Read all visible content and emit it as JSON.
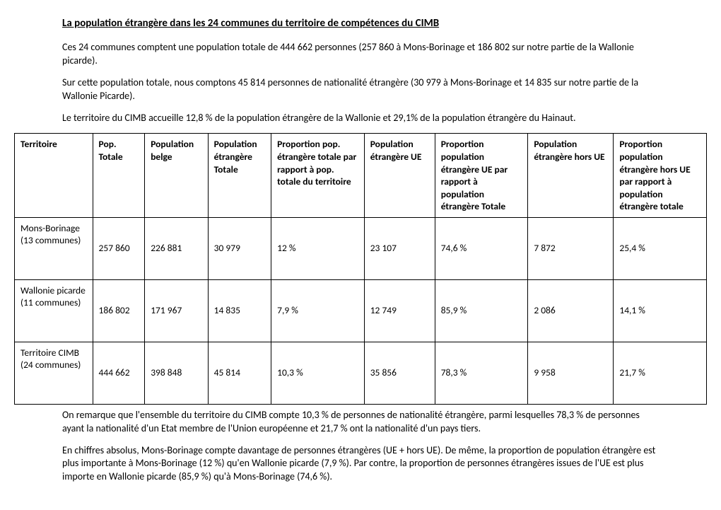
{
  "title": "La population étrangère dans les 24 communes du territoire de compétences du CIMB",
  "intro": {
    "p1": "Ces 24 communes comptent une population totale de 444 662 personnes (257 860 à Mons-Borinage et 186 802 sur notre partie de la Wallonie picarde).",
    "p2": "Sur cette population totale, nous comptons 45 814 personnes de nationalité étrangère (30 979 à Mons-Borinage et 14 835 sur notre partie de la Wallonie Picarde).",
    "p3": "Le territoire du CIMB accueille 12,8 % de la population étrangère de la Wallonie et 29,1% de la population étrangère du Hainaut."
  },
  "table": {
    "headers": [
      "Territoire",
      "Pop. Totale",
      "Population belge",
      "Population\nétrangère\nTotale",
      "Proportion pop. étrangère totale par rapport à pop. totale du territoire",
      "Population\nétrangère UE",
      "Proportion population étrangère UE par rapport à population étrangère Totale",
      "Population étrangère hors UE",
      "Proportion population étrangère hors UE par rapport à population étrangère totale"
    ],
    "rows": [
      {
        "territoire": "Mons-Borinage (13 communes)",
        "pop_totale": "257 860",
        "pop_belge": "226 881",
        "pop_etr_totale": "30 979",
        "prop_etr_totale": "12 %",
        "pop_etr_ue": "23 107",
        "prop_etr_ue": "74,6 %",
        "pop_etr_hors_ue": "7 872",
        "prop_etr_hors_ue": "25,4 %"
      },
      {
        "territoire": "Wallonie picarde (11 communes)",
        "pop_totale": "186 802",
        "pop_belge": "171 967",
        "pop_etr_totale": "14 835",
        "prop_etr_totale": "7,9 %",
        "pop_etr_ue": "12 749",
        "prop_etr_ue": "85,9 %",
        "pop_etr_hors_ue": "2 086",
        "prop_etr_hors_ue": "14,1 %"
      },
      {
        "territoire": "Territoire CIMB (24 communes)",
        "pop_totale": "444 662",
        "pop_belge": "398 848",
        "pop_etr_totale": "45 814",
        "prop_etr_totale": "10,3 %",
        "pop_etr_ue": "35 856",
        "prop_etr_ue": "78,3 %",
        "pop_etr_hors_ue": "9 958",
        "prop_etr_hors_ue": "21,7 %"
      }
    ]
  },
  "outro": {
    "p1": "On remarque que l'ensemble du territoire du CIMB compte 10,3 % de personnes de nationalité étrangère, parmi lesquelles 78,3 % de personnes ayant la nationalité d'un Etat membre de l'Union européenne et 21,7 % ont la nationalité d'un pays tiers.",
    "p2": "En chiffres absolus, Mons-Borinage compte davantage de personnes étrangères (UE + hors UE). De même, la proportion de population étrangère est plus importante à Mons-Borinage (12 %) qu'en Wallonie picarde (7,9 %). Par contre, la proportion de personnes étrangères issues de l'UE est plus importe en Wallonie picarde (85,9 %) qu'à Mons-Borinage (74,6 %)."
  }
}
